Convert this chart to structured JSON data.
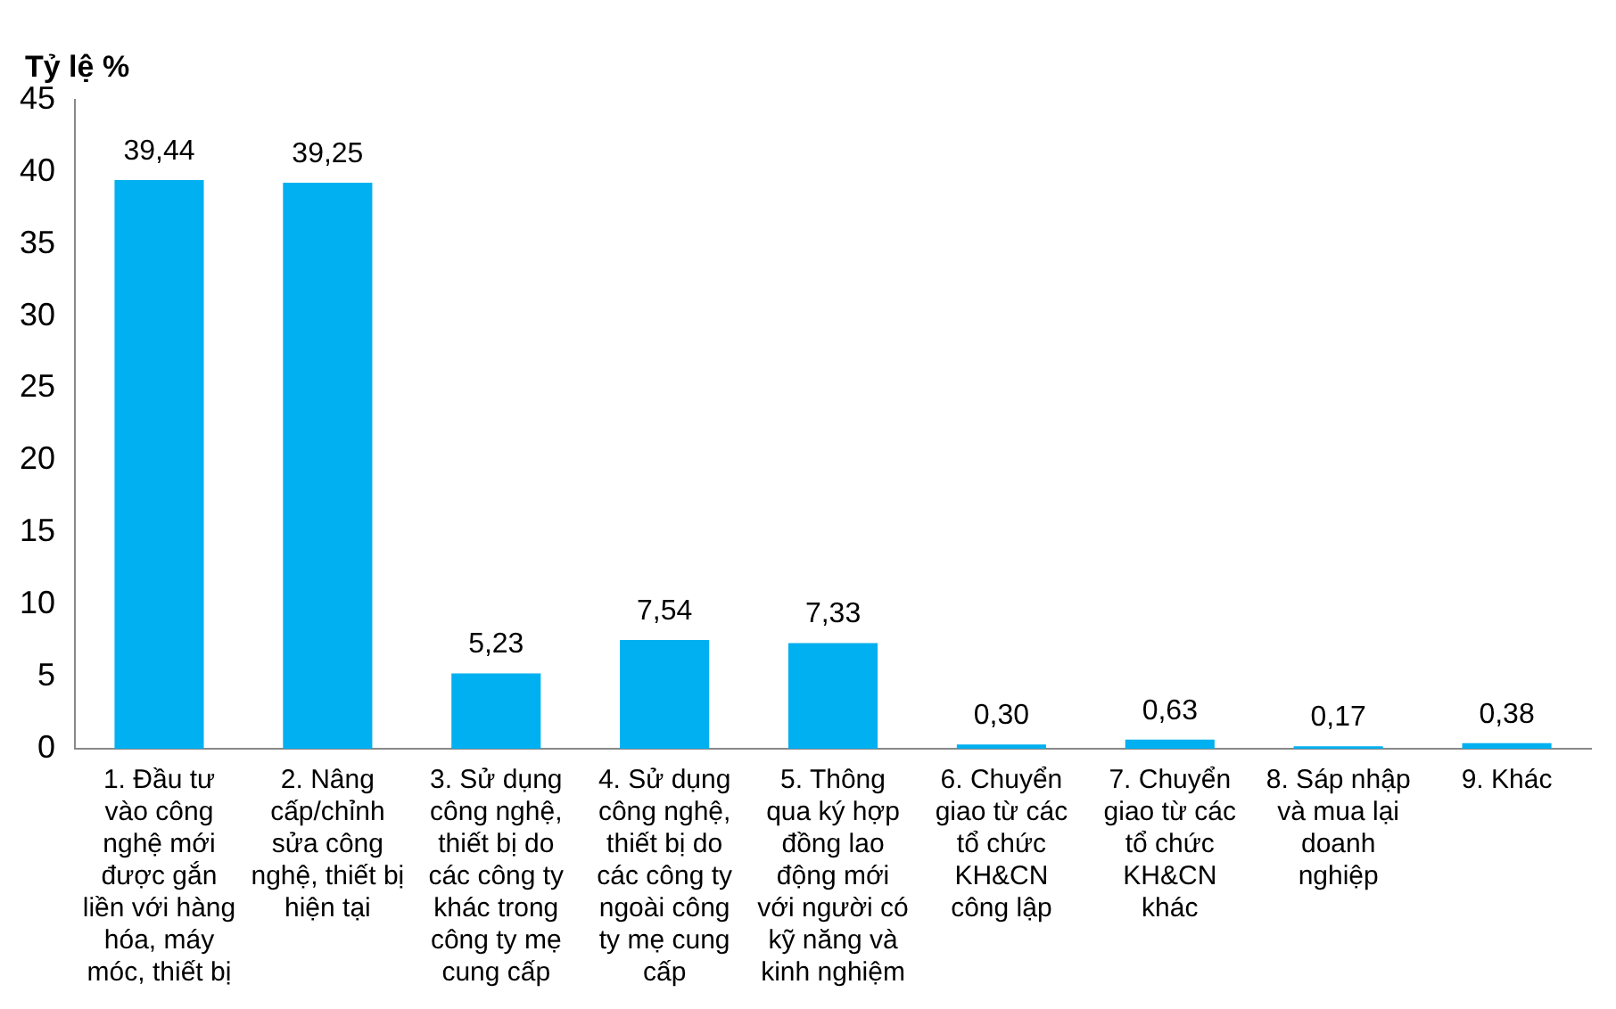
{
  "chart_data": {
    "type": "bar",
    "ylabel": "Tỷ lệ %",
    "categories": [
      "1. Đầu tư vào công nghệ mới được gắn liền với hàng hóa, máy móc, thiết bị",
      "2. Nâng cấp/chỉnh sửa công nghệ, thiết bị hiện tại",
      "3. Sử dụng công nghệ, thiết bị do các công ty khác trong công ty mẹ cung cấp",
      "4. Sử dụng công nghệ, thiết bị do các công ty ngoài công ty mẹ cung cấp",
      "5. Thông qua ký hợp đồng lao động mới với người có kỹ năng và kinh nghiệm",
      "6. Chuyển giao từ các tổ chức KH&CN công lập",
      "7. Chuyển giao từ các tổ chức KH&CN khác",
      "8. Sáp nhập và mua lại doanh nghiệp",
      "9. Khác"
    ],
    "values": [
      39.44,
      39.25,
      5.23,
      7.54,
      7.33,
      0.3,
      0.63,
      0.17,
      0.38
    ],
    "value_labels": [
      "39,44",
      "39,25",
      "5,23",
      "7,54",
      "7,33",
      "0,30",
      "0,63",
      "0,17",
      "0,38"
    ],
    "color": "#00b0f0",
    "ylim": [
      0,
      45
    ],
    "yticks": [
      0,
      5,
      10,
      15,
      20,
      25,
      30,
      35,
      40,
      45
    ],
    "grid": false,
    "legend": false
  }
}
